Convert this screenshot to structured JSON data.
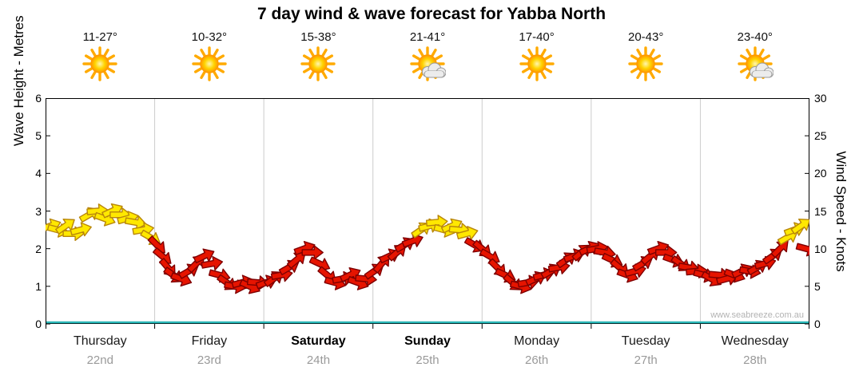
{
  "title": "7 day wind & wave forecast for Yabba North",
  "watermark": "www.seabreeze.com.au",
  "chart_data": {
    "type": "line",
    "title": "7 day wind & wave forecast for Yabba North",
    "left_axis": {
      "label": "Wave Height - Metres",
      "min": 0,
      "max": 6,
      "ticks": [
        0,
        1,
        2,
        3,
        4,
        5,
        6
      ]
    },
    "right_axis": {
      "label": "Wind Speed - Knots",
      "min": 0,
      "max": 30,
      "ticks": [
        0,
        5,
        10,
        15,
        20,
        25,
        30
      ]
    },
    "grid": "vertical-day-boundaries",
    "legend": "none",
    "days": [
      {
        "name": "Thursday",
        "date": "22nd",
        "temp": "11-27°",
        "icon": "sun",
        "bold": false
      },
      {
        "name": "Friday",
        "date": "23rd",
        "temp": "10-32°",
        "icon": "sun",
        "bold": false
      },
      {
        "name": "Saturday",
        "date": "24th",
        "temp": "15-38°",
        "icon": "sun",
        "bold": true
      },
      {
        "name": "Sunday",
        "date": "25th",
        "temp": "21-41°",
        "icon": "sun-cloud",
        "bold": true
      },
      {
        "name": "Monday",
        "date": "26th",
        "temp": "17-40°",
        "icon": "sun",
        "bold": false
      },
      {
        "name": "Tuesday",
        "date": "27th",
        "temp": "20-43°",
        "icon": "sun",
        "bold": false
      },
      {
        "name": "Wednesday",
        "date": "28th",
        "temp": "23-40°",
        "icon": "sun-cloud",
        "bold": false
      }
    ],
    "wave_height_series": {
      "name": "Wave Height",
      "unit": "m",
      "values": [
        0,
        0,
        0,
        0,
        0,
        0,
        0
      ],
      "color": "#29b6b6"
    },
    "wind_arrow_colors": {
      "y": "#ffe800",
      "r": "#e61400"
    },
    "wind_arrow_strokes": {
      "y": "#b8860b",
      "r": "#7e0000"
    },
    "wind_arrows": [
      [
        0.04,
        13,
        -20,
        "y"
      ],
      [
        0.11,
        12.5,
        15,
        "y"
      ],
      [
        0.18,
        13,
        -35,
        "y"
      ],
      [
        0.25,
        12,
        0,
        "y"
      ],
      [
        0.32,
        12.5,
        -15,
        "y"
      ],
      [
        0.4,
        14.5,
        -30,
        "y"
      ],
      [
        0.47,
        15,
        -5,
        "y"
      ],
      [
        0.54,
        14,
        20,
        "y"
      ],
      [
        0.61,
        15,
        -25,
        "y"
      ],
      [
        0.68,
        14.5,
        0,
        "y"
      ],
      [
        0.75,
        14,
        -15,
        "y"
      ],
      [
        0.82,
        13.5,
        10,
        "y"
      ],
      [
        0.89,
        12.5,
        -10,
        "y"
      ],
      [
        0.96,
        11.5,
        30,
        "y"
      ],
      [
        1.02,
        10.5,
        45,
        "r"
      ],
      [
        1.07,
        9,
        40,
        "r"
      ],
      [
        1.12,
        7.5,
        50,
        "r"
      ],
      [
        1.17,
        6.5,
        35,
        "r"
      ],
      [
        1.24,
        6,
        20,
        "r"
      ],
      [
        1.31,
        7,
        -30,
        "r"
      ],
      [
        1.38,
        8,
        -45,
        "r"
      ],
      [
        1.45,
        9,
        -25,
        "r"
      ],
      [
        1.52,
        8,
        -10,
        "r"
      ],
      [
        1.59,
        6.5,
        15,
        "r"
      ],
      [
        1.66,
        5.5,
        35,
        "r"
      ],
      [
        1.73,
        5,
        10,
        "r"
      ],
      [
        1.8,
        5.5,
        -15,
        "r"
      ],
      [
        1.87,
        5,
        25,
        "r"
      ],
      [
        1.94,
        5.5,
        5,
        "r"
      ],
      [
        2.02,
        5.5,
        -20,
        "r"
      ],
      [
        2.09,
        6,
        -35,
        "r"
      ],
      [
        2.16,
        6.5,
        -10,
        "r"
      ],
      [
        2.23,
        7.5,
        -30,
        "r"
      ],
      [
        2.3,
        8.5,
        -40,
        "r"
      ],
      [
        2.37,
        10,
        -20,
        "r"
      ],
      [
        2.44,
        9.5,
        0,
        "r"
      ],
      [
        2.51,
        8,
        25,
        "r"
      ],
      [
        2.58,
        6.5,
        40,
        "r"
      ],
      [
        2.65,
        5.5,
        15,
        "r"
      ],
      [
        2.72,
        6,
        -10,
        "r"
      ],
      [
        2.79,
        6.5,
        -25,
        "r"
      ],
      [
        2.86,
        5.5,
        20,
        "r"
      ],
      [
        2.93,
        6,
        5,
        "r"
      ],
      [
        3.01,
        7,
        -35,
        "r"
      ],
      [
        3.08,
        8,
        -50,
        "r"
      ],
      [
        3.15,
        9,
        -25,
        "r"
      ],
      [
        3.22,
        9.5,
        -40,
        "r"
      ],
      [
        3.29,
        10.5,
        -30,
        "r"
      ],
      [
        3.36,
        11,
        -20,
        "r"
      ],
      [
        3.44,
        12.5,
        -35,
        "y"
      ],
      [
        3.51,
        13,
        -15,
        "y"
      ],
      [
        3.58,
        13.5,
        -5,
        "y"
      ],
      [
        3.65,
        12.5,
        15,
        "y"
      ],
      [
        3.72,
        13,
        -25,
        "y"
      ],
      [
        3.79,
        12.5,
        5,
        "y"
      ],
      [
        3.86,
        12,
        -15,
        "y"
      ],
      [
        3.93,
        10.5,
        30,
        "r"
      ],
      [
        4.0,
        10,
        40,
        "r"
      ],
      [
        4.07,
        9,
        30,
        "r"
      ],
      [
        4.14,
        7.5,
        45,
        "r"
      ],
      [
        4.21,
        6.5,
        25,
        "r"
      ],
      [
        4.28,
        5.5,
        40,
        "r"
      ],
      [
        4.35,
        5,
        15,
        "r"
      ],
      [
        4.42,
        5.5,
        -10,
        "r"
      ],
      [
        4.49,
        6,
        -25,
        "r"
      ],
      [
        4.56,
        6.5,
        -15,
        "r"
      ],
      [
        4.63,
        7,
        -30,
        "r"
      ],
      [
        4.7,
        7.5,
        -10,
        "r"
      ],
      [
        4.77,
        8.5,
        -35,
        "r"
      ],
      [
        4.84,
        9,
        -20,
        "r"
      ],
      [
        4.91,
        9.5,
        -40,
        "r"
      ],
      [
        4.98,
        10,
        -25,
        "r"
      ],
      [
        5.05,
        10,
        -10,
        "r"
      ],
      [
        5.12,
        9.5,
        10,
        "r"
      ],
      [
        5.19,
        8.5,
        25,
        "r"
      ],
      [
        5.26,
        7.5,
        40,
        "r"
      ],
      [
        5.33,
        6.5,
        20,
        "r"
      ],
      [
        5.4,
        7,
        -15,
        "r"
      ],
      [
        5.47,
        8,
        -30,
        "r"
      ],
      [
        5.54,
        9,
        -40,
        "r"
      ],
      [
        5.61,
        10,
        -20,
        "r"
      ],
      [
        5.68,
        9.5,
        0,
        "r"
      ],
      [
        5.75,
        8.5,
        20,
        "r"
      ],
      [
        5.82,
        8,
        35,
        "r"
      ],
      [
        5.89,
        7.5,
        10,
        "r"
      ],
      [
        5.96,
        7,
        -5,
        "r"
      ],
      [
        6.03,
        6.5,
        15,
        "r"
      ],
      [
        6.1,
        6,
        30,
        "r"
      ],
      [
        6.17,
        6.5,
        5,
        "r"
      ],
      [
        6.24,
        6,
        -15,
        "r"
      ],
      [
        6.31,
        6.5,
        20,
        "r"
      ],
      [
        6.38,
        7,
        -25,
        "r"
      ],
      [
        6.45,
        7,
        10,
        "r"
      ],
      [
        6.52,
        7.5,
        -30,
        "r"
      ],
      [
        6.59,
        8,
        -15,
        "r"
      ],
      [
        6.66,
        9,
        -35,
        "r"
      ],
      [
        6.73,
        10,
        -45,
        "r"
      ],
      [
        6.8,
        11.5,
        -30,
        "y"
      ],
      [
        6.86,
        12.5,
        -20,
        "y"
      ],
      [
        6.92,
        13,
        -35,
        "y"
      ],
      [
        6.97,
        10,
        15,
        "r"
      ]
    ]
  }
}
